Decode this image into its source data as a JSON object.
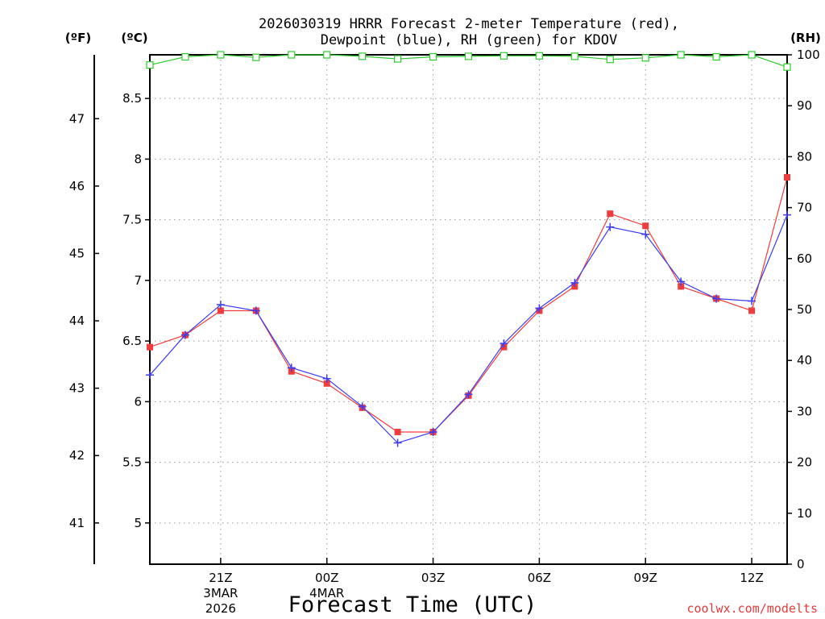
{
  "chart_data": {
    "type": "line",
    "title_line1": "2026030319 HRRR Forecast 2-meter Temperature (red),",
    "title_line2": "Dewpoint (blue), RH (green) for KDOV",
    "xlabel": "Forecast Time (UTC)",
    "credit": "coolwx.com/modelts",
    "units": {
      "fahrenheit": "(ºF)",
      "celsius": "(ºC)",
      "rh": "(RH)"
    },
    "x_hours_since_start": [
      0,
      1,
      2,
      3,
      4,
      5,
      6,
      7,
      8,
      9,
      10,
      11,
      12,
      13,
      14,
      15,
      16,
      17,
      18
    ],
    "xlim": [
      0,
      18
    ],
    "x_ticks": [
      {
        "x": 2,
        "label": "21Z",
        "sub1": "3MAR",
        "sub2": "2026"
      },
      {
        "x": 5,
        "label": "00Z",
        "sub1": "4MAR",
        "sub2": ""
      },
      {
        "x": 8,
        "label": "03Z",
        "sub1": "",
        "sub2": ""
      },
      {
        "x": 11,
        "label": "06Z",
        "sub1": "",
        "sub2": ""
      },
      {
        "x": 14,
        "label": "09Z",
        "sub1": "",
        "sub2": ""
      },
      {
        "x": 17,
        "label": "12Z",
        "sub1": "",
        "sub2": ""
      }
    ],
    "left_axis_celsius": {
      "ylim": [
        4.66,
        8.86
      ],
      "ticks": [
        5,
        5.5,
        6,
        6.5,
        7,
        7.5,
        8,
        8.5
      ],
      "labels": [
        "5",
        "5.5",
        "6",
        "6.5",
        "7",
        "7.5",
        "8",
        "8.5"
      ]
    },
    "fahrenheit_axis": {
      "ticks": [
        41,
        42,
        43,
        44,
        45,
        46,
        47
      ],
      "labels": [
        "41",
        "42",
        "43",
        "44",
        "45",
        "46",
        "47"
      ]
    },
    "right_axis_rh": {
      "ylim": [
        0,
        100
      ],
      "ticks": [
        0,
        10,
        20,
        30,
        40,
        50,
        60,
        70,
        80,
        90,
        100
      ],
      "labels": [
        "0",
        "10",
        "20",
        "30",
        "40",
        "50",
        "60",
        "70",
        "80",
        "90",
        "100"
      ]
    },
    "series": [
      {
        "name": "Temperature",
        "axis": "celsius",
        "color": "#f03c3c",
        "marker": "square",
        "values": [
          6.45,
          6.55,
          6.75,
          6.75,
          6.25,
          6.15,
          5.95,
          5.75,
          5.75,
          6.05,
          6.45,
          6.75,
          6.95,
          7.55,
          7.45,
          6.95,
          6.85,
          6.75,
          7.85
        ]
      },
      {
        "name": "Dewpoint",
        "axis": "celsius",
        "color": "#3c3cf0",
        "marker": "plus",
        "values": [
          6.22,
          6.55,
          6.8,
          6.75,
          6.28,
          6.19,
          5.96,
          5.66,
          5.75,
          6.06,
          6.48,
          6.77,
          6.98,
          7.44,
          7.38,
          6.99,
          6.85,
          6.83,
          7.54
        ]
      },
      {
        "name": "RH",
        "axis": "rh",
        "color": "#2ecc2e",
        "marker": "open-square",
        "values": [
          98,
          99.6,
          100,
          99.5,
          100,
          100,
          99.7,
          99.2,
          99.6,
          99.7,
          99.8,
          99.8,
          99.7,
          99.1,
          99.4,
          100,
          99.6,
          100,
          97.6
        ]
      }
    ]
  }
}
